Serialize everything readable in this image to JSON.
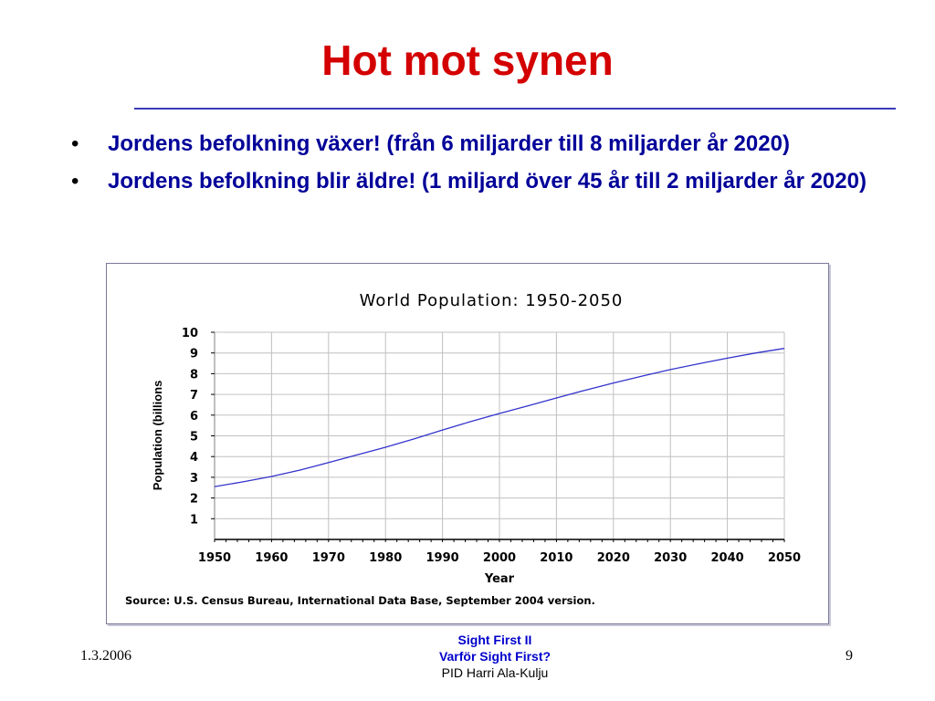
{
  "slide": {
    "title": "Hot mot synen",
    "bullets": [
      {
        "marker": "•",
        "text": "Jordens befolkning växer! (från 6 miljarder till 8 miljarder år 2020)"
      },
      {
        "marker": "•",
        "text": "Jordens befolkning blir äldre! (1 miljard över 45 år till 2 miljarder år 2020)"
      }
    ]
  },
  "footer": {
    "date": "1.3.2006",
    "center_line1": "Sight First II",
    "center_line2": "Varför Sight First?",
    "center_line3": "PID Harri Ala-Kulju",
    "page_number": "9"
  },
  "colors": {
    "title": "#d40000",
    "bullet_text": "#000099",
    "rule": "#3a3ab8",
    "series_line": "#3333cc",
    "grid": "#c0c0c0"
  },
  "chart_data": {
    "type": "line",
    "title": "World Population: 1950-2050",
    "xlabel": "Year",
    "ylabel": "Population (billions",
    "source": "Source: U.S. Census Bureau, International Data Base, September 2004 version.",
    "xlim": [
      1950,
      2050
    ],
    "ylim": [
      0,
      10
    ],
    "x_ticks": [
      1950,
      1960,
      1970,
      1980,
      1990,
      2000,
      2010,
      2020,
      2030,
      2040,
      2050
    ],
    "y_ticks": [
      1,
      2,
      3,
      4,
      5,
      6,
      7,
      8,
      9,
      10
    ],
    "grid": true,
    "series": [
      {
        "x": [
          1950,
          1955,
          1960,
          1965,
          1970,
          1975,
          1980,
          1985,
          1990,
          1995,
          2000,
          2005,
          2010,
          2015,
          2020,
          2025,
          2030,
          2035,
          2040,
          2045,
          2050
        ],
        "y": [
          2.55,
          2.78,
          3.04,
          3.35,
          3.71,
          4.08,
          4.45,
          4.85,
          5.28,
          5.69,
          6.08,
          6.45,
          6.83,
          7.2,
          7.55,
          7.88,
          8.2,
          8.48,
          8.75,
          9.0,
          9.22
        ]
      }
    ]
  }
}
